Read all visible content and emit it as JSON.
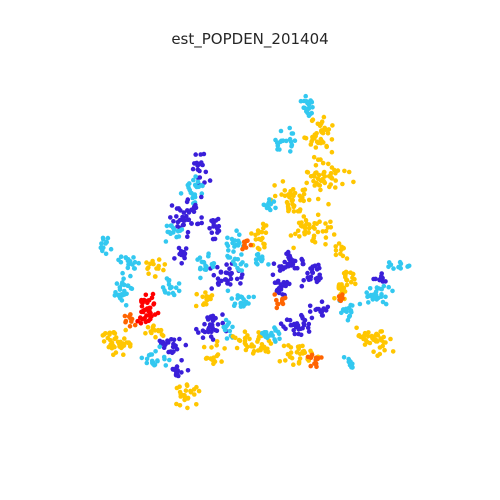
{
  "title": "est_POPDEN_201404",
  "colors": {
    "very_low": "#3a1fd9",
    "low": "#33c8f0",
    "medium": "#ffc600",
    "high": "#ff6400",
    "very_high": "#ff0000"
  },
  "cluster_levels": [
    "low",
    "medium",
    "low",
    "medium",
    "very_low",
    "low",
    "very_low",
    "low",
    "medium",
    "low",
    "medium",
    "very_low",
    "low",
    "very_low",
    "medium",
    "very_low",
    "very_low",
    "very_low",
    "very_low",
    "low",
    "medium",
    "low",
    "low",
    "low",
    "low",
    "high",
    "very_high",
    "medium",
    "low",
    "very_low",
    "very_low",
    "low",
    "very_low",
    "medium",
    "medium",
    "low",
    "very_low",
    "high",
    "medium",
    "low",
    "medium",
    "high",
    "very_low",
    "medium",
    "low",
    "low",
    "medium",
    "very_low",
    "low",
    "medium",
    "high",
    "low",
    "medium",
    "medium",
    "high",
    "medium",
    "low",
    "low",
    "medium"
  ]
}
